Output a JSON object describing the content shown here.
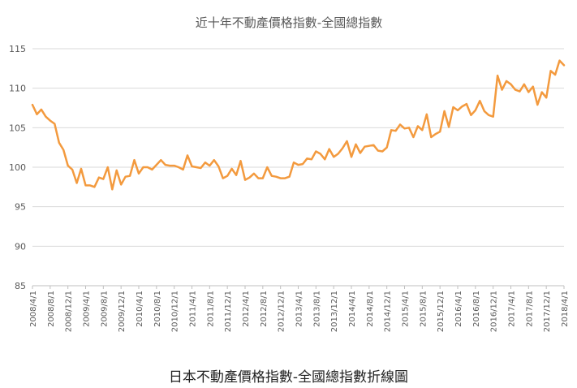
{
  "chart_data": {
    "type": "line",
    "title": "近十年不動產價格指數-全國總指數",
    "xlabel": "",
    "ylabel": "",
    "ylim": [
      85,
      115
    ],
    "yticks": [
      85,
      90,
      95,
      100,
      105,
      110,
      115
    ],
    "grid": true,
    "legend": "none",
    "line_color": "#F39A3E",
    "grid_color": "#D9D9D9",
    "x_tick_labels": [
      "2008/4/1",
      "2008/8/1",
      "2008/12/1",
      "2009/4/1",
      "2009/8/1",
      "2009/12/1",
      "2010/4/1",
      "2010/8/1",
      "2010/12/1",
      "2011/4/1",
      "2011/8/1",
      "2011/12/1",
      "2012/4/1",
      "2012/8/1",
      "2012/12/1",
      "2013/4/1",
      "2013/8/1",
      "2013/12/1",
      "2014/4/1",
      "2014/8/1",
      "2014/12/1",
      "2015/4/1",
      "2015/8/1",
      "2015/12/1",
      "2016/4/1",
      "2016/8/1",
      "2016/12/1",
      "2017/4/1",
      "2017/8/1",
      "2017/12/1",
      "2018/4/1"
    ],
    "start_label": "2008/4/1",
    "end_label": "2018/4/1",
    "series": [
      {
        "values": [
          107.9,
          106.7,
          107.3,
          106.4,
          105.9,
          105.5,
          103.1,
          102.2,
          100.2,
          99.7,
          98.0,
          99.8,
          97.7,
          97.7,
          97.5,
          98.7,
          98.5,
          100.0,
          97.2,
          99.6,
          97.8,
          98.8,
          98.9,
          100.9,
          99.2,
          100.0,
          100.0,
          99.7,
          100.3,
          100.9,
          100.3,
          100.2,
          100.2,
          100.0,
          99.7,
          101.5,
          100.1,
          100.0,
          99.9,
          100.6,
          100.2,
          100.9,
          100.1,
          98.6,
          98.9,
          99.8,
          99.0,
          100.8,
          98.4,
          98.7,
          99.2,
          98.6,
          98.6,
          100.0,
          98.9,
          98.8,
          98.6,
          98.6,
          98.8,
          100.6,
          100.3,
          100.4,
          101.1,
          101.0,
          102.0,
          101.7,
          101.0,
          102.3,
          101.3,
          101.7,
          102.4,
          103.3,
          101.3,
          102.9,
          101.8,
          102.6,
          102.7,
          102.8,
          102.1,
          102.0,
          102.5,
          104.7,
          104.6,
          105.4,
          104.9,
          105.0,
          103.8,
          105.2,
          104.7,
          106.7,
          103.8,
          104.2,
          104.5,
          107.1,
          105.1,
          107.6,
          107.2,
          107.7,
          108.0,
          106.6,
          107.2,
          108.4,
          107.1,
          106.6,
          106.4,
          111.6,
          109.8,
          110.9,
          110.5,
          109.8,
          109.6,
          110.5,
          109.5,
          110.2,
          107.9,
          109.5,
          108.8,
          112.2,
          111.7,
          113.5,
          112.9
        ]
      }
    ]
  },
  "caption": "日本不動產價格指數-全國總指數折線圖"
}
